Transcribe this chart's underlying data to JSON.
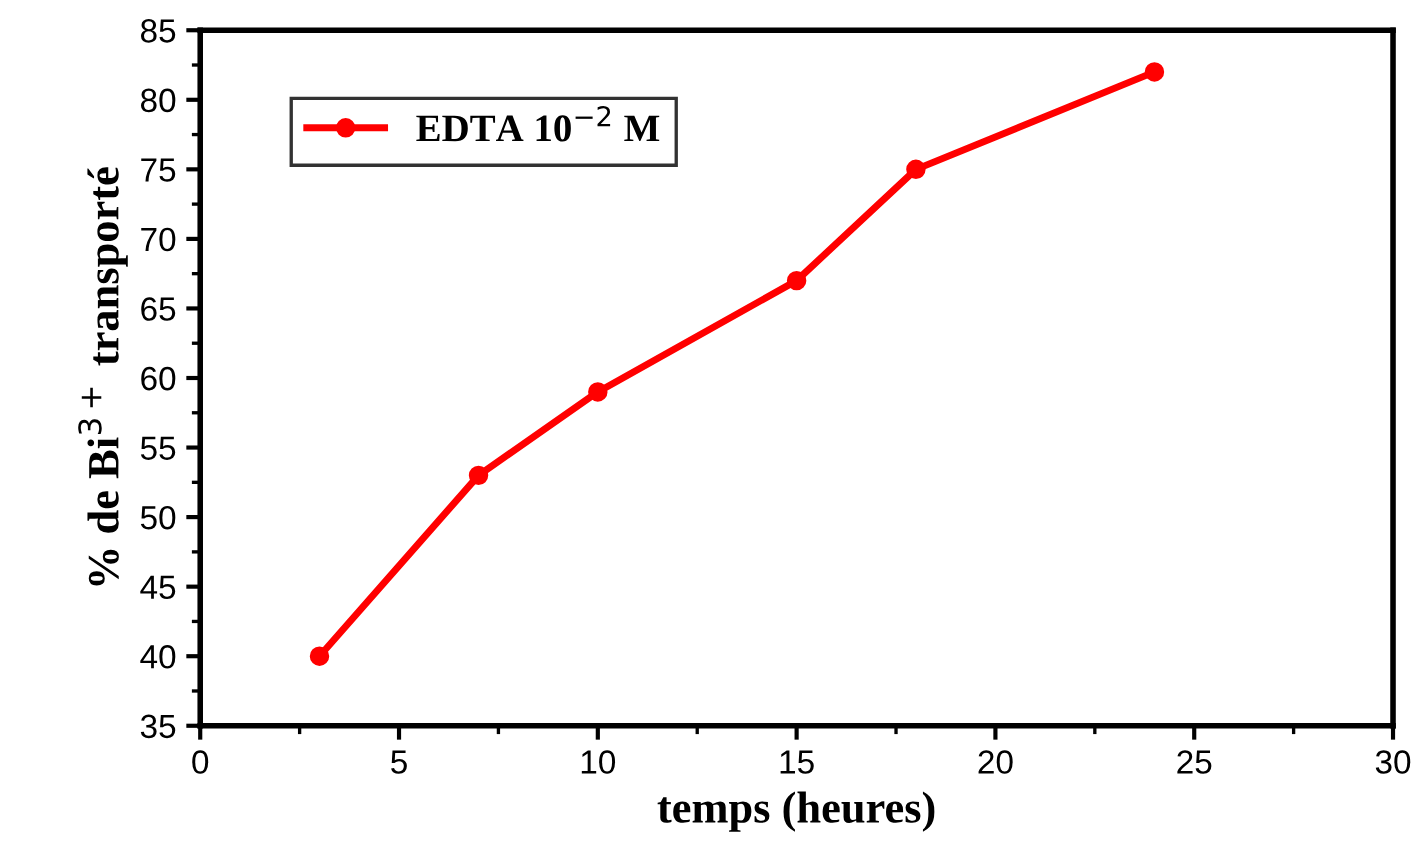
{
  "chart_data": {
    "type": "line",
    "xlabel": "temps (heures)",
    "ylabel": "% de Bi$^{3+}$ transporté",
    "x": [
      3,
      7,
      10,
      15,
      18,
      24
    ],
    "series": [
      {
        "name": "EDTA 10$^{−2}$ M",
        "color": "#ff0000",
        "values": [
          40,
          53,
          59,
          67,
          75,
          82
        ]
      }
    ],
    "xlim": [
      0,
      30
    ],
    "xticks": [
      0,
      5,
      10,
      15,
      20,
      25,
      30
    ],
    "ylim": [
      35,
      85
    ],
    "yticks": [
      35,
      40,
      45,
      50,
      55,
      60,
      65,
      70,
      75,
      80,
      85
    ],
    "grid": false,
    "legend": "top left",
    "marker": "circle",
    "line_style": "solid"
  }
}
